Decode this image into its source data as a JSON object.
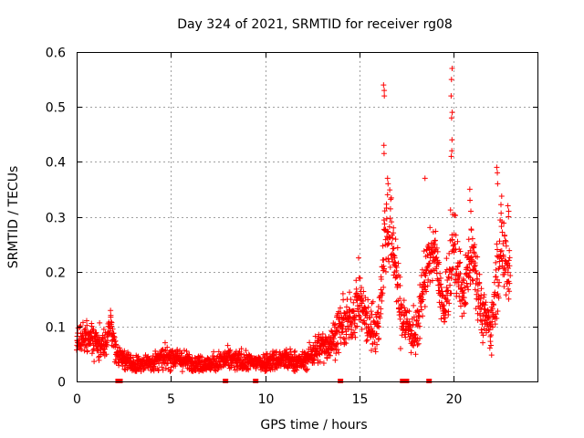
{
  "chart_data": {
    "type": "scatter",
    "title": "Day 324 of 2021, SRMTID for receiver rg08",
    "xlabel": "GPS time / hours",
    "ylabel": "SRMTID / TECUs",
    "xlim": [
      0,
      24.5
    ],
    "ylim": [
      0,
      0.6
    ],
    "x_ticks": [
      0,
      5,
      10,
      15,
      20
    ],
    "y_ticks": [
      0,
      0.1,
      0.2,
      0.3,
      0.4,
      0.5,
      0.6
    ],
    "x_tick_labels": [
      "0",
      "5",
      "10",
      "15",
      "20"
    ],
    "y_tick_labels": [
      "0",
      "0.1",
      "0.2",
      "0.3",
      "0.4",
      "0.5",
      "0.6"
    ],
    "grid": true,
    "marker": "+",
    "color": "#ff0000",
    "gap_markers_x": [
      2.2,
      2.3,
      7.9,
      9.5,
      14.0,
      17.3,
      17.4,
      17.5,
      18.7
    ],
    "envelope": [
      {
        "x": 0.0,
        "y": 0.07,
        "s": 0.02
      },
      {
        "x": 0.5,
        "y": 0.08,
        "s": 0.02
      },
      {
        "x": 1.0,
        "y": 0.07,
        "s": 0.02
      },
      {
        "x": 1.5,
        "y": 0.06,
        "s": 0.02
      },
      {
        "x": 1.8,
        "y": 0.11,
        "s": 0.02
      },
      {
        "x": 2.1,
        "y": 0.05,
        "s": 0.015
      },
      {
        "x": 3.0,
        "y": 0.03,
        "s": 0.012
      },
      {
        "x": 4.0,
        "y": 0.035,
        "s": 0.012
      },
      {
        "x": 5.0,
        "y": 0.045,
        "s": 0.015
      },
      {
        "x": 6.0,
        "y": 0.035,
        "s": 0.012
      },
      {
        "x": 7.0,
        "y": 0.03,
        "s": 0.012
      },
      {
        "x": 8.0,
        "y": 0.04,
        "s": 0.015
      },
      {
        "x": 9.0,
        "y": 0.035,
        "s": 0.012
      },
      {
        "x": 10.0,
        "y": 0.035,
        "s": 0.012
      },
      {
        "x": 11.0,
        "y": 0.04,
        "s": 0.015
      },
      {
        "x": 12.0,
        "y": 0.035,
        "s": 0.012
      },
      {
        "x": 12.8,
        "y": 0.06,
        "s": 0.02
      },
      {
        "x": 13.5,
        "y": 0.07,
        "s": 0.02
      },
      {
        "x": 14.0,
        "y": 0.1,
        "s": 0.03
      },
      {
        "x": 14.5,
        "y": 0.11,
        "s": 0.03
      },
      {
        "x": 15.0,
        "y": 0.15,
        "s": 0.04
      },
      {
        "x": 15.5,
        "y": 0.1,
        "s": 0.03
      },
      {
        "x": 16.0,
        "y": 0.1,
        "s": 0.03
      },
      {
        "x": 16.4,
        "y": 0.28,
        "s": 0.06
      },
      {
        "x": 16.8,
        "y": 0.25,
        "s": 0.05
      },
      {
        "x": 17.2,
        "y": 0.12,
        "s": 0.04
      },
      {
        "x": 17.6,
        "y": 0.1,
        "s": 0.03
      },
      {
        "x": 18.0,
        "y": 0.08,
        "s": 0.03
      },
      {
        "x": 18.5,
        "y": 0.2,
        "s": 0.04
      },
      {
        "x": 19.0,
        "y": 0.24,
        "s": 0.03
      },
      {
        "x": 19.5,
        "y": 0.12,
        "s": 0.03
      },
      {
        "x": 20.0,
        "y": 0.25,
        "s": 0.06
      },
      {
        "x": 20.5,
        "y": 0.15,
        "s": 0.03
      },
      {
        "x": 21.0,
        "y": 0.25,
        "s": 0.05
      },
      {
        "x": 21.5,
        "y": 0.12,
        "s": 0.03
      },
      {
        "x": 22.0,
        "y": 0.1,
        "s": 0.03
      },
      {
        "x": 22.5,
        "y": 0.25,
        "s": 0.06
      },
      {
        "x": 23.0,
        "y": 0.2,
        "s": 0.05
      }
    ],
    "spikes": [
      {
        "x": 16.3,
        "y": [
          0.415,
          0.43,
          0.52,
          0.53,
          0.54
        ]
      },
      {
        "x": 16.5,
        "y": [
          0.34,
          0.36,
          0.37
        ]
      },
      {
        "x": 18.5,
        "y": [
          0.37
        ]
      },
      {
        "x": 19.9,
        "y": [
          0.41,
          0.42,
          0.44,
          0.48,
          0.49,
          0.52,
          0.55,
          0.57
        ]
      },
      {
        "x": 20.9,
        "y": [
          0.31,
          0.33,
          0.35
        ]
      },
      {
        "x": 22.3,
        "y": [
          0.36,
          0.38,
          0.39
        ]
      },
      {
        "x": 22.9,
        "y": [
          0.3,
          0.31,
          0.32
        ]
      }
    ],
    "n_points": 2200
  }
}
